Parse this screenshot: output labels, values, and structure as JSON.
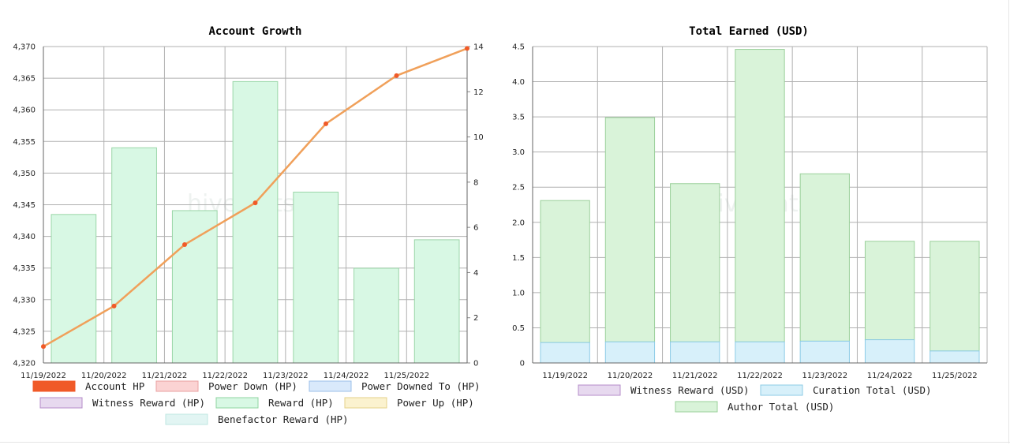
{
  "watermark": "hivestats.io",
  "chart_data": [
    {
      "type": "bar",
      "title": "Account Growth",
      "categories": [
        "11/19/2022",
        "11/20/2022",
        "11/21/2022",
        "11/22/2022",
        "11/23/2022",
        "11/24/2022",
        "11/25/2022"
      ],
      "y_left": {
        "ticks": [
          "4,320",
          "4,325",
          "4,330",
          "4,335",
          "4,340",
          "4,345",
          "4,350",
          "4,355",
          "4,360",
          "4,365",
          "4,370"
        ],
        "range": [
          4320,
          4370
        ]
      },
      "y_right": {
        "ticks": [
          "0",
          "2",
          "4",
          "6",
          "8",
          "10",
          "12",
          "14"
        ],
        "range": [
          0,
          14
        ]
      },
      "grid": true,
      "series": [
        {
          "name": "Account HP",
          "kind": "line",
          "axis": "left",
          "color": "#f05a28",
          "line_color": "#f0a05a",
          "values": [
            4322.6,
            4329.0,
            4338.7,
            4345.3,
            4357.8,
            4365.4,
            4369.7
          ]
        },
        {
          "name": "Power Down (HP)",
          "kind": "bar",
          "axis": "right",
          "color": "#fbd3d3",
          "values": [
            0,
            0,
            0,
            0,
            0,
            0,
            0
          ]
        },
        {
          "name": "Power Downed To (HP)",
          "kind": "bar",
          "axis": "right",
          "color": "#d9e9fb",
          "values": [
            0,
            0,
            0,
            0,
            0,
            0,
            0
          ]
        },
        {
          "name": "Witness Reward (HP)",
          "kind": "bar",
          "axis": "right",
          "color": "#e7d9ef",
          "values": [
            0,
            0,
            0,
            0,
            0,
            0,
            0
          ]
        },
        {
          "name": "Reward (HP)",
          "kind": "bar",
          "axis": "right",
          "color": "#d8f8e4",
          "stroke": "#9ad6a8",
          "values": [
            6.57,
            9.52,
            6.74,
            12.45,
            7.56,
            4.19,
            5.45
          ]
        },
        {
          "name": "Power Up (HP)",
          "kind": "bar",
          "axis": "right",
          "color": "#fbf2cf",
          "values": [
            0,
            0,
            0,
            0,
            0,
            0,
            0
          ]
        },
        {
          "name": "Benefactor Reward (HP)",
          "kind": "bar",
          "axis": "right",
          "color": "#e2f5f3",
          "values": [
            0,
            0,
            0,
            0,
            0,
            0,
            0
          ]
        }
      ],
      "legend_position": "bottom"
    },
    {
      "type": "bar",
      "title": "Total Earned (USD)",
      "stacked": true,
      "categories": [
        "11/19/2022",
        "11/20/2022",
        "11/21/2022",
        "11/22/2022",
        "11/23/2022",
        "11/24/2022",
        "11/25/2022"
      ],
      "y": {
        "ticks": [
          "0",
          "0.5",
          "1.0",
          "1.5",
          "2.0",
          "2.5",
          "3.0",
          "3.5",
          "4.0",
          "4.5"
        ],
        "range": [
          0,
          4.5
        ]
      },
      "grid": true,
      "series": [
        {
          "name": "Witness Reward (USD)",
          "color": "#e7d9ef",
          "stroke": "#b48cc8",
          "values": [
            0,
            0,
            0,
            0,
            0,
            0,
            0
          ]
        },
        {
          "name": "Curation Total (USD)",
          "color": "#d7f0fa",
          "stroke": "#8ccbe6",
          "values": [
            0.29,
            0.3,
            0.3,
            0.3,
            0.31,
            0.33,
            0.17
          ]
        },
        {
          "name": "Author Total (USD)",
          "color": "#d9f3d9",
          "stroke": "#9ad09a",
          "values": [
            2.02,
            3.19,
            2.25,
            4.16,
            2.38,
            1.4,
            1.56
          ]
        }
      ],
      "legend_position": "bottom"
    }
  ]
}
